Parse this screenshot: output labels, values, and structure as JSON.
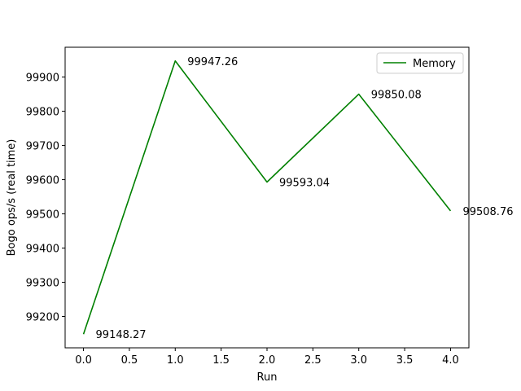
{
  "chart_data": {
    "type": "line",
    "title": "",
    "xlabel": "Run",
    "ylabel": "Bogo ops/s (real time)",
    "xlim": [
      -0.2,
      4.2
    ],
    "ylim": [
      99108.3,
      99987.2
    ],
    "xticks": [
      0.0,
      0.5,
      1.0,
      1.5,
      2.0,
      2.5,
      3.0,
      3.5,
      4.0
    ],
    "xtick_labels": [
      "0.0",
      "0.5",
      "1.0",
      "1.5",
      "2.0",
      "2.5",
      "3.0",
      "3.5",
      "4.0"
    ],
    "yticks": [
      99200,
      99300,
      99400,
      99500,
      99600,
      99700,
      99800,
      99900
    ],
    "ytick_labels": [
      "99200",
      "99300",
      "99400",
      "99500",
      "99600",
      "99700",
      "99800",
      "99900"
    ],
    "grid": false,
    "legend_position": "top-right",
    "series": [
      {
        "name": "Memory",
        "color": "#008000",
        "x": [
          0,
          1,
          2,
          3,
          4
        ],
        "values": [
          99148.27,
          99947.26,
          99593.04,
          99850.08,
          99508.76
        ],
        "data_labels": [
          "99148.27",
          "99947.26",
          "99593.04",
          "99850.08",
          "99508.76"
        ]
      }
    ]
  }
}
